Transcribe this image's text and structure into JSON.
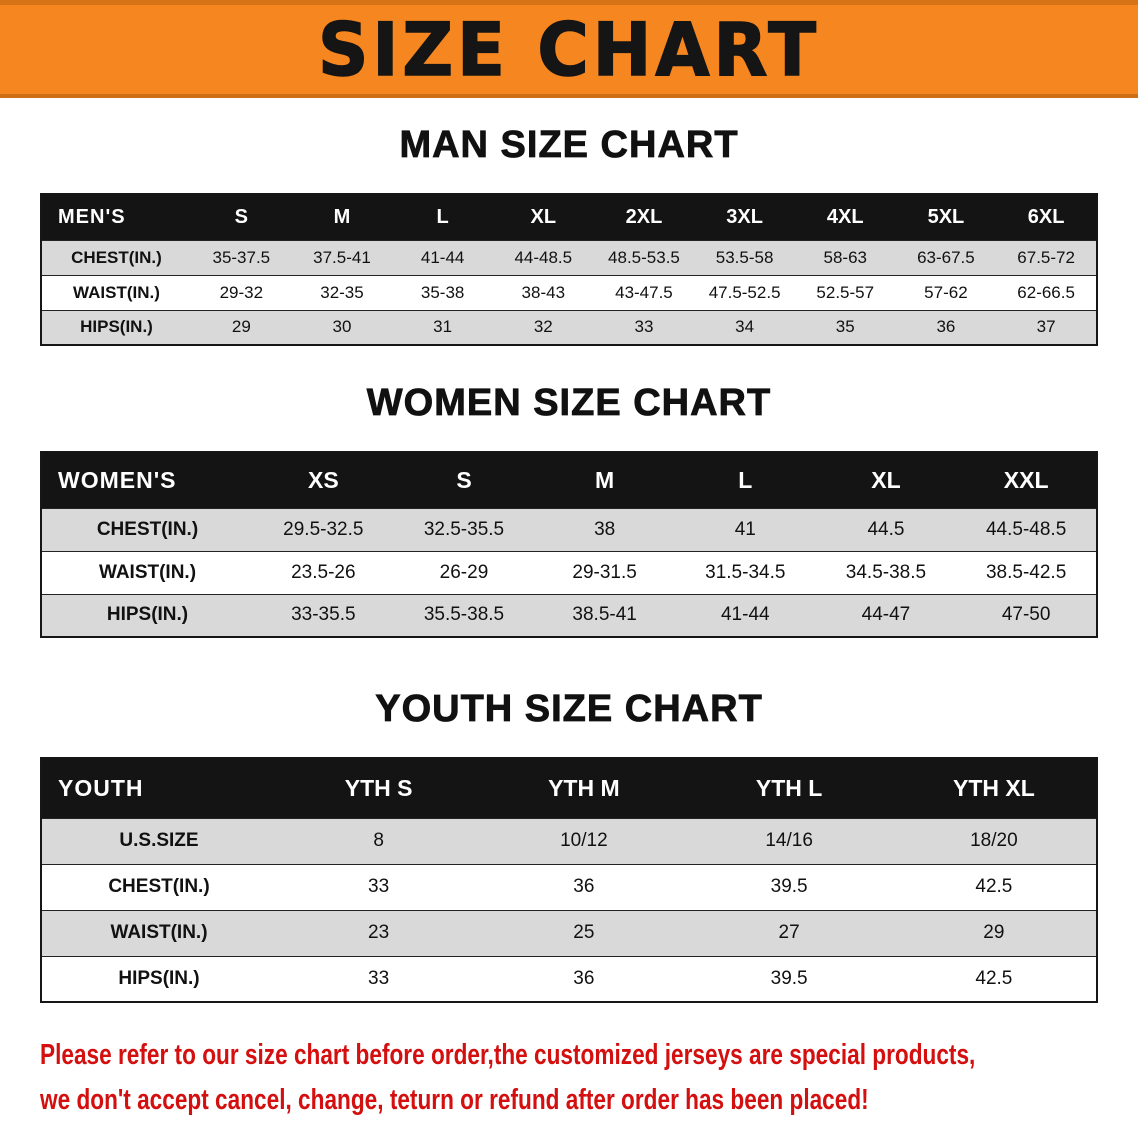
{
  "colors": {
    "banner_bg": "#f6861f",
    "banner_text": "#151515",
    "heading_text": "#111111",
    "table_header_bg": "#141414",
    "table_header_text": "#ffffff",
    "row_shade": "#d9d9d9",
    "row_plain": "#ffffff",
    "notice_text": "#d40f0f"
  },
  "banner": {
    "title": "SIZE CHART"
  },
  "sections": {
    "men": {
      "heading": "MAN SIZE CHART",
      "table": {
        "header_label": "MEN'S",
        "columns": [
          "S",
          "M",
          "L",
          "XL",
          "2XL",
          "3XL",
          "4XL",
          "5XL",
          "6XL"
        ],
        "rows": [
          {
            "label": "CHEST(IN.)",
            "values": [
              "35-37.5",
              "37.5-41",
              "41-44",
              "44-48.5",
              "48.5-53.5",
              "53.5-58",
              "58-63",
              "63-67.5",
              "67.5-72"
            ]
          },
          {
            "label": "WAIST(IN.)",
            "values": [
              "29-32",
              "32-35",
              "35-38",
              "38-43",
              "43-47.5",
              "47.5-52.5",
              "52.5-57",
              "57-62",
              "62-66.5"
            ]
          },
          {
            "label": "HIPS(IN.)",
            "values": [
              "29",
              "30",
              "31",
              "32",
              "33",
              "34",
              "35",
              "36",
              "37"
            ]
          }
        ]
      }
    },
    "women": {
      "heading": "WOMEN SIZE CHART",
      "table": {
        "header_label": "WOMEN'S",
        "columns": [
          "XS",
          "S",
          "M",
          "L",
          "XL",
          "XXL"
        ],
        "rows": [
          {
            "label": "CHEST(IN.)",
            "values": [
              "29.5-32.5",
              "32.5-35.5",
              "38",
              "41",
              "44.5",
              "44.5-48.5"
            ]
          },
          {
            "label": "WAIST(IN.)",
            "values": [
              "23.5-26",
              "26-29",
              "29-31.5",
              "31.5-34.5",
              "34.5-38.5",
              "38.5-42.5"
            ]
          },
          {
            "label": "HIPS(IN.)",
            "values": [
              "33-35.5",
              "35.5-38.5",
              "38.5-41",
              "41-44",
              "44-47",
              "47-50"
            ]
          }
        ]
      }
    },
    "youth": {
      "heading": "YOUTH SIZE CHART",
      "table": {
        "header_label": "YOUTH",
        "columns": [
          "YTH S",
          "YTH M",
          "YTH L",
          "YTH XL"
        ],
        "rows": [
          {
            "label": "U.S.SIZE",
            "values": [
              "8",
              "10/12",
              "14/16",
              "18/20"
            ]
          },
          {
            "label": "CHEST(IN.)",
            "values": [
              "33",
              "36",
              "39.5",
              "42.5"
            ]
          },
          {
            "label": "WAIST(IN.)",
            "values": [
              "23",
              "25",
              "27",
              "29"
            ]
          },
          {
            "label": "HIPS(IN.)",
            "values": [
              "33",
              "36",
              "39.5",
              "42.5"
            ]
          }
        ]
      }
    }
  },
  "notice": {
    "line1": "Please refer to our size chart before order,the customized jerseys are special products,",
    "line2": "we don't accept cancel, change, teturn or refund after order has been placed!"
  }
}
